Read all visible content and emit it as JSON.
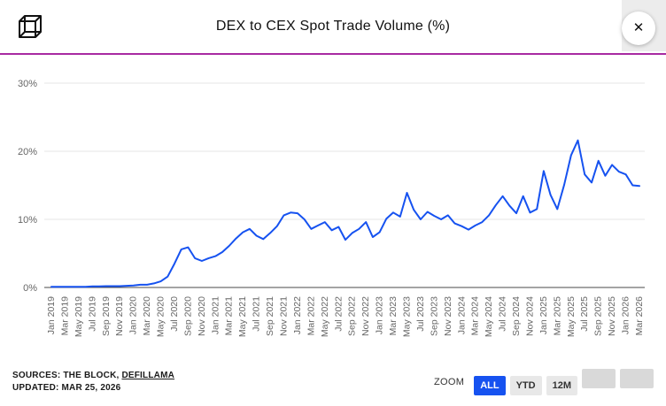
{
  "header": {
    "title": "DEX to CEX Spot Trade Volume (%)",
    "close_label": "✕"
  },
  "colors": {
    "divider": "#a82aa2",
    "line": "#1652f0",
    "zoom_active": "#1652f0"
  },
  "footer": {
    "sources_prefix": "SOURCES: THE BLOCK, ",
    "sources_link": "DEFILLAMA",
    "updated": "UPDATED: MAR 25, 2026",
    "zoom_label": "ZOOM",
    "zoom_buttons": [
      {
        "label": "ALL",
        "active": true
      },
      {
        "label": "YTD",
        "active": false
      },
      {
        "label": "12M",
        "active": false
      },
      {
        "label": "",
        "active": false
      },
      {
        "label": "",
        "active": false
      }
    ]
  },
  "chart_data": {
    "type": "line",
    "title": "DEX to CEX Spot Trade Volume (%)",
    "line_color": "#1652f0",
    "grid": true,
    "ylim": [
      0,
      30
    ],
    "y_ticks": [
      0,
      10,
      20,
      30
    ],
    "y_tick_labels": [
      "0%",
      "10%",
      "20%",
      "30%"
    ],
    "x": [
      "Jan 2019",
      "Feb 2019",
      "Mar 2019",
      "Apr 2019",
      "May 2019",
      "Jun 2019",
      "Jul 2019",
      "Aug 2019",
      "Sep 2019",
      "Oct 2019",
      "Nov 2019",
      "Dec 2019",
      "Jan 2020",
      "Feb 2020",
      "Mar 2020",
      "Apr 2020",
      "May 2020",
      "Jun 2020",
      "Jul 2020",
      "Aug 2020",
      "Sep 2020",
      "Oct 2020",
      "Nov 2020",
      "Dec 2020",
      "Jan 2021",
      "Feb 2021",
      "Mar 2021",
      "Apr 2021",
      "May 2021",
      "Jun 2021",
      "Jul 2021",
      "Aug 2021",
      "Sep 2021",
      "Oct 2021",
      "Nov 2021",
      "Dec 2021",
      "Jan 2022",
      "Feb 2022",
      "Mar 2022",
      "Apr 2022",
      "May 2022",
      "Jun 2022",
      "Jul 2022",
      "Aug 2022",
      "Sep 2022",
      "Oct 2022",
      "Nov 2022",
      "Dec 2022",
      "Jan 2023",
      "Feb 2023",
      "Mar 2023",
      "Apr 2023",
      "May 2023",
      "Jun 2023",
      "Jul 2023",
      "Aug 2023",
      "Sep 2023",
      "Oct 2023",
      "Nov 2023",
      "Dec 2023",
      "Jan 2024",
      "Feb 2024",
      "Mar 2024",
      "Apr 2024",
      "May 2024",
      "Jun 2024",
      "Jul 2024",
      "Aug 2024",
      "Sep 2024",
      "Oct 2024",
      "Nov 2024",
      "Dec 2024",
      "Jan 2025",
      "Feb 2025",
      "Mar 2025",
      "Apr 2025",
      "May 2025",
      "Jun 2025",
      "Jul 2025",
      "Aug 2025",
      "Sep 2025",
      "Oct 2025",
      "Nov 2025",
      "Dec 2025",
      "Jan 2026",
      "Feb 2026",
      "Mar 2026"
    ],
    "values": [
      0.1,
      0.1,
      0.1,
      0.1,
      0.1,
      0.1,
      0.15,
      0.15,
      0.2,
      0.2,
      0.2,
      0.25,
      0.3,
      0.4,
      0.4,
      0.6,
      0.9,
      1.6,
      3.5,
      5.6,
      5.9,
      4.3,
      3.9,
      4.3,
      4.6,
      5.2,
      6.1,
      7.2,
      8.1,
      8.6,
      7.6,
      7.1,
      8.0,
      9.0,
      10.6,
      11.0,
      10.9,
      10.0,
      8.6,
      9.1,
      9.6,
      8.4,
      8.9,
      7.0,
      8.0,
      8.6,
      9.6,
      7.4,
      8.1,
      10.1,
      11.0,
      10.4,
      13.9,
      11.4,
      10.0,
      11.1,
      10.5,
      10.0,
      10.6,
      9.4,
      9.0,
      8.5,
      9.1,
      9.6,
      10.6,
      12.1,
      13.4,
      12.0,
      10.9,
      13.4,
      11.0,
      11.5,
      17.1,
      13.6,
      11.5,
      15.1,
      19.4,
      21.6,
      16.6,
      15.4,
      18.6,
      16.4,
      18.0,
      17.0,
      16.6,
      15.0,
      14.9
    ],
    "x_tick_labels": [
      "Jan 2019",
      "Mar 2019",
      "May 2019",
      "Jul 2019",
      "Sep 2019",
      "Nov 2019",
      "Jan 2020",
      "Mar 2020",
      "May 2020",
      "Jul 2020",
      "Sep 2020",
      "Nov 2020",
      "Jan 2021",
      "Mar 2021",
      "May 2021",
      "Jul 2021",
      "Sep 2021",
      "Nov 2021",
      "Jan 2022",
      "Mar 2022",
      "May 2022",
      "Jul 2022",
      "Sep 2022",
      "Nov 2022",
      "Jan 2023",
      "Mar 2023",
      "May 2023",
      "Jul 2023",
      "Sep 2023",
      "Nov 2023",
      "Jan 2024",
      "Mar 2024",
      "May 2024",
      "Jul 2024",
      "Sep 2024",
      "Nov 2024",
      "Jan 2025",
      "Mar 2025",
      "May 2025",
      "Jul 2025",
      "Sep 2025",
      "Nov 2025",
      "Jan 2026",
      "Mar 2026"
    ],
    "legend": "none"
  }
}
